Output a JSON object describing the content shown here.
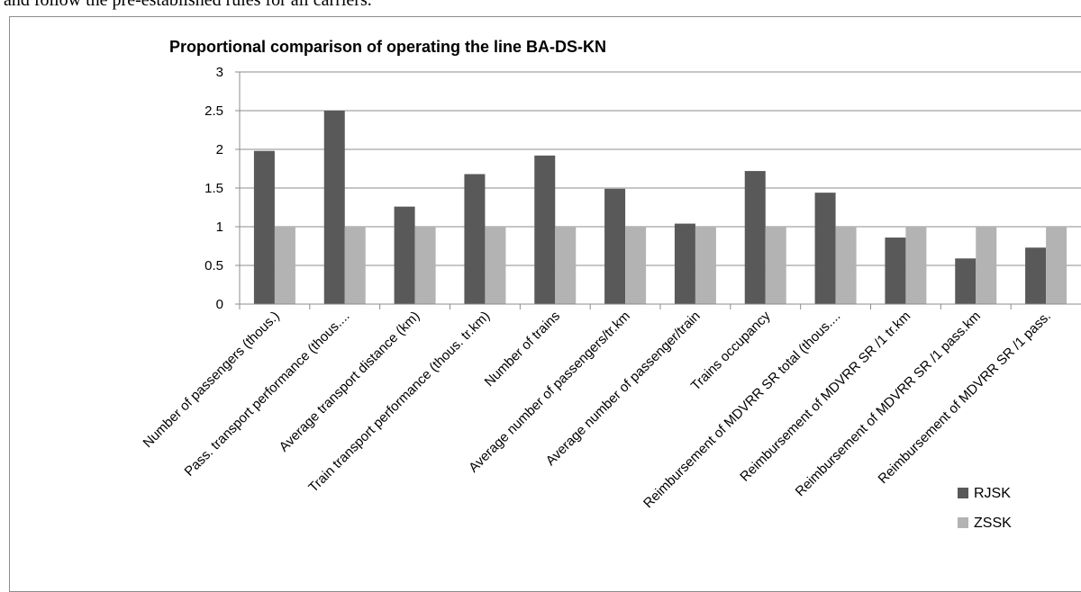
{
  "top_text": "and follow the pre-established rules for all carriers.",
  "chart_data": {
    "type": "bar",
    "title": "Proportional comparison of operating the line BA-DS-KN",
    "xlabel": "",
    "ylabel": "",
    "ylim": [
      0,
      3
    ],
    "yticks": [
      "0",
      "0.5",
      "1",
      "1.5",
      "2",
      "2.5",
      "3"
    ],
    "grid": true,
    "legend_position": "bottom-right",
    "categories": [
      "Number of passengers (thous.)",
      "Pass. transport performance (thous....",
      "Average transport distance (km)",
      "Train transport performance (thous. tr.km)",
      "Number of trains",
      "Average number of passengers/tr.km",
      "Average number of passenger/train",
      "Trains occupancy",
      "Reimbursement of MDVRR SR total (thous....",
      "Reimbursement of MDVRR SR /1 tr.km",
      "Reimbursement of MDVRR SR /1 pass.km",
      "Reimbursement of MDVRR SR /1 pass."
    ],
    "series": [
      {
        "name": "RJSK",
        "color": "#595959",
        "values": [
          1.98,
          2.5,
          1.26,
          1.68,
          1.92,
          1.49,
          1.04,
          1.72,
          1.44,
          0.86,
          0.59,
          0.73
        ]
      },
      {
        "name": "ZSSK",
        "color": "#b3b3b3",
        "values": [
          1,
          1,
          1,
          1,
          1,
          1,
          1,
          1,
          1,
          1,
          1,
          1
        ]
      }
    ]
  }
}
